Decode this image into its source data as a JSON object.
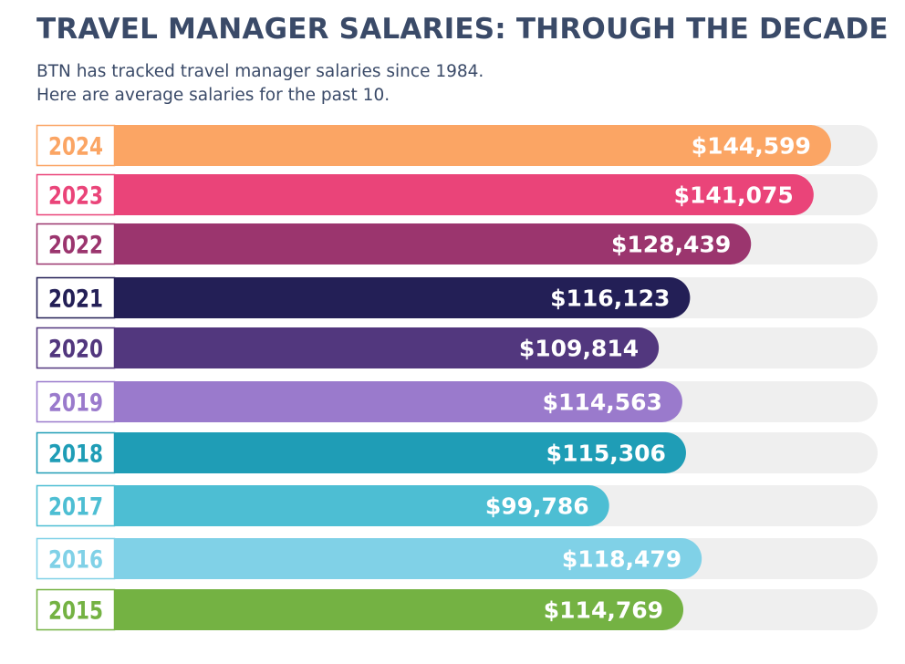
{
  "chart_data": {
    "type": "bar",
    "orientation": "horizontal",
    "title": "TRAVEL MANAGER SALARIES: THROUGH THE DECADE",
    "subtitle": [
      "BTN has tracked travel manager salaries since 1984.",
      "Here are average salaries for the past 10."
    ],
    "categories": [
      "2024",
      "2023",
      "2022",
      "2021",
      "2020",
      "2019",
      "2018",
      "2017",
      "2016",
      "2015"
    ],
    "values": [
      144599,
      141075,
      128439,
      116123,
      109814,
      114563,
      115306,
      99786,
      118479,
      114769
    ],
    "value_labels": [
      "$144,599",
      "$141,075",
      "$128,439",
      "$116,123",
      "$109,814",
      "$114,563",
      "$115,306",
      "$99,786",
      "$118,479",
      "$114,769"
    ],
    "colors": [
      "#fba564",
      "#ea4479",
      "#9b356e",
      "#231f56",
      "#52377e",
      "#9a7acc",
      "#1f9db6",
      "#4dbed3",
      "#80d1e7",
      "#74b243"
    ],
    "grid": false,
    "legend": "none"
  }
}
